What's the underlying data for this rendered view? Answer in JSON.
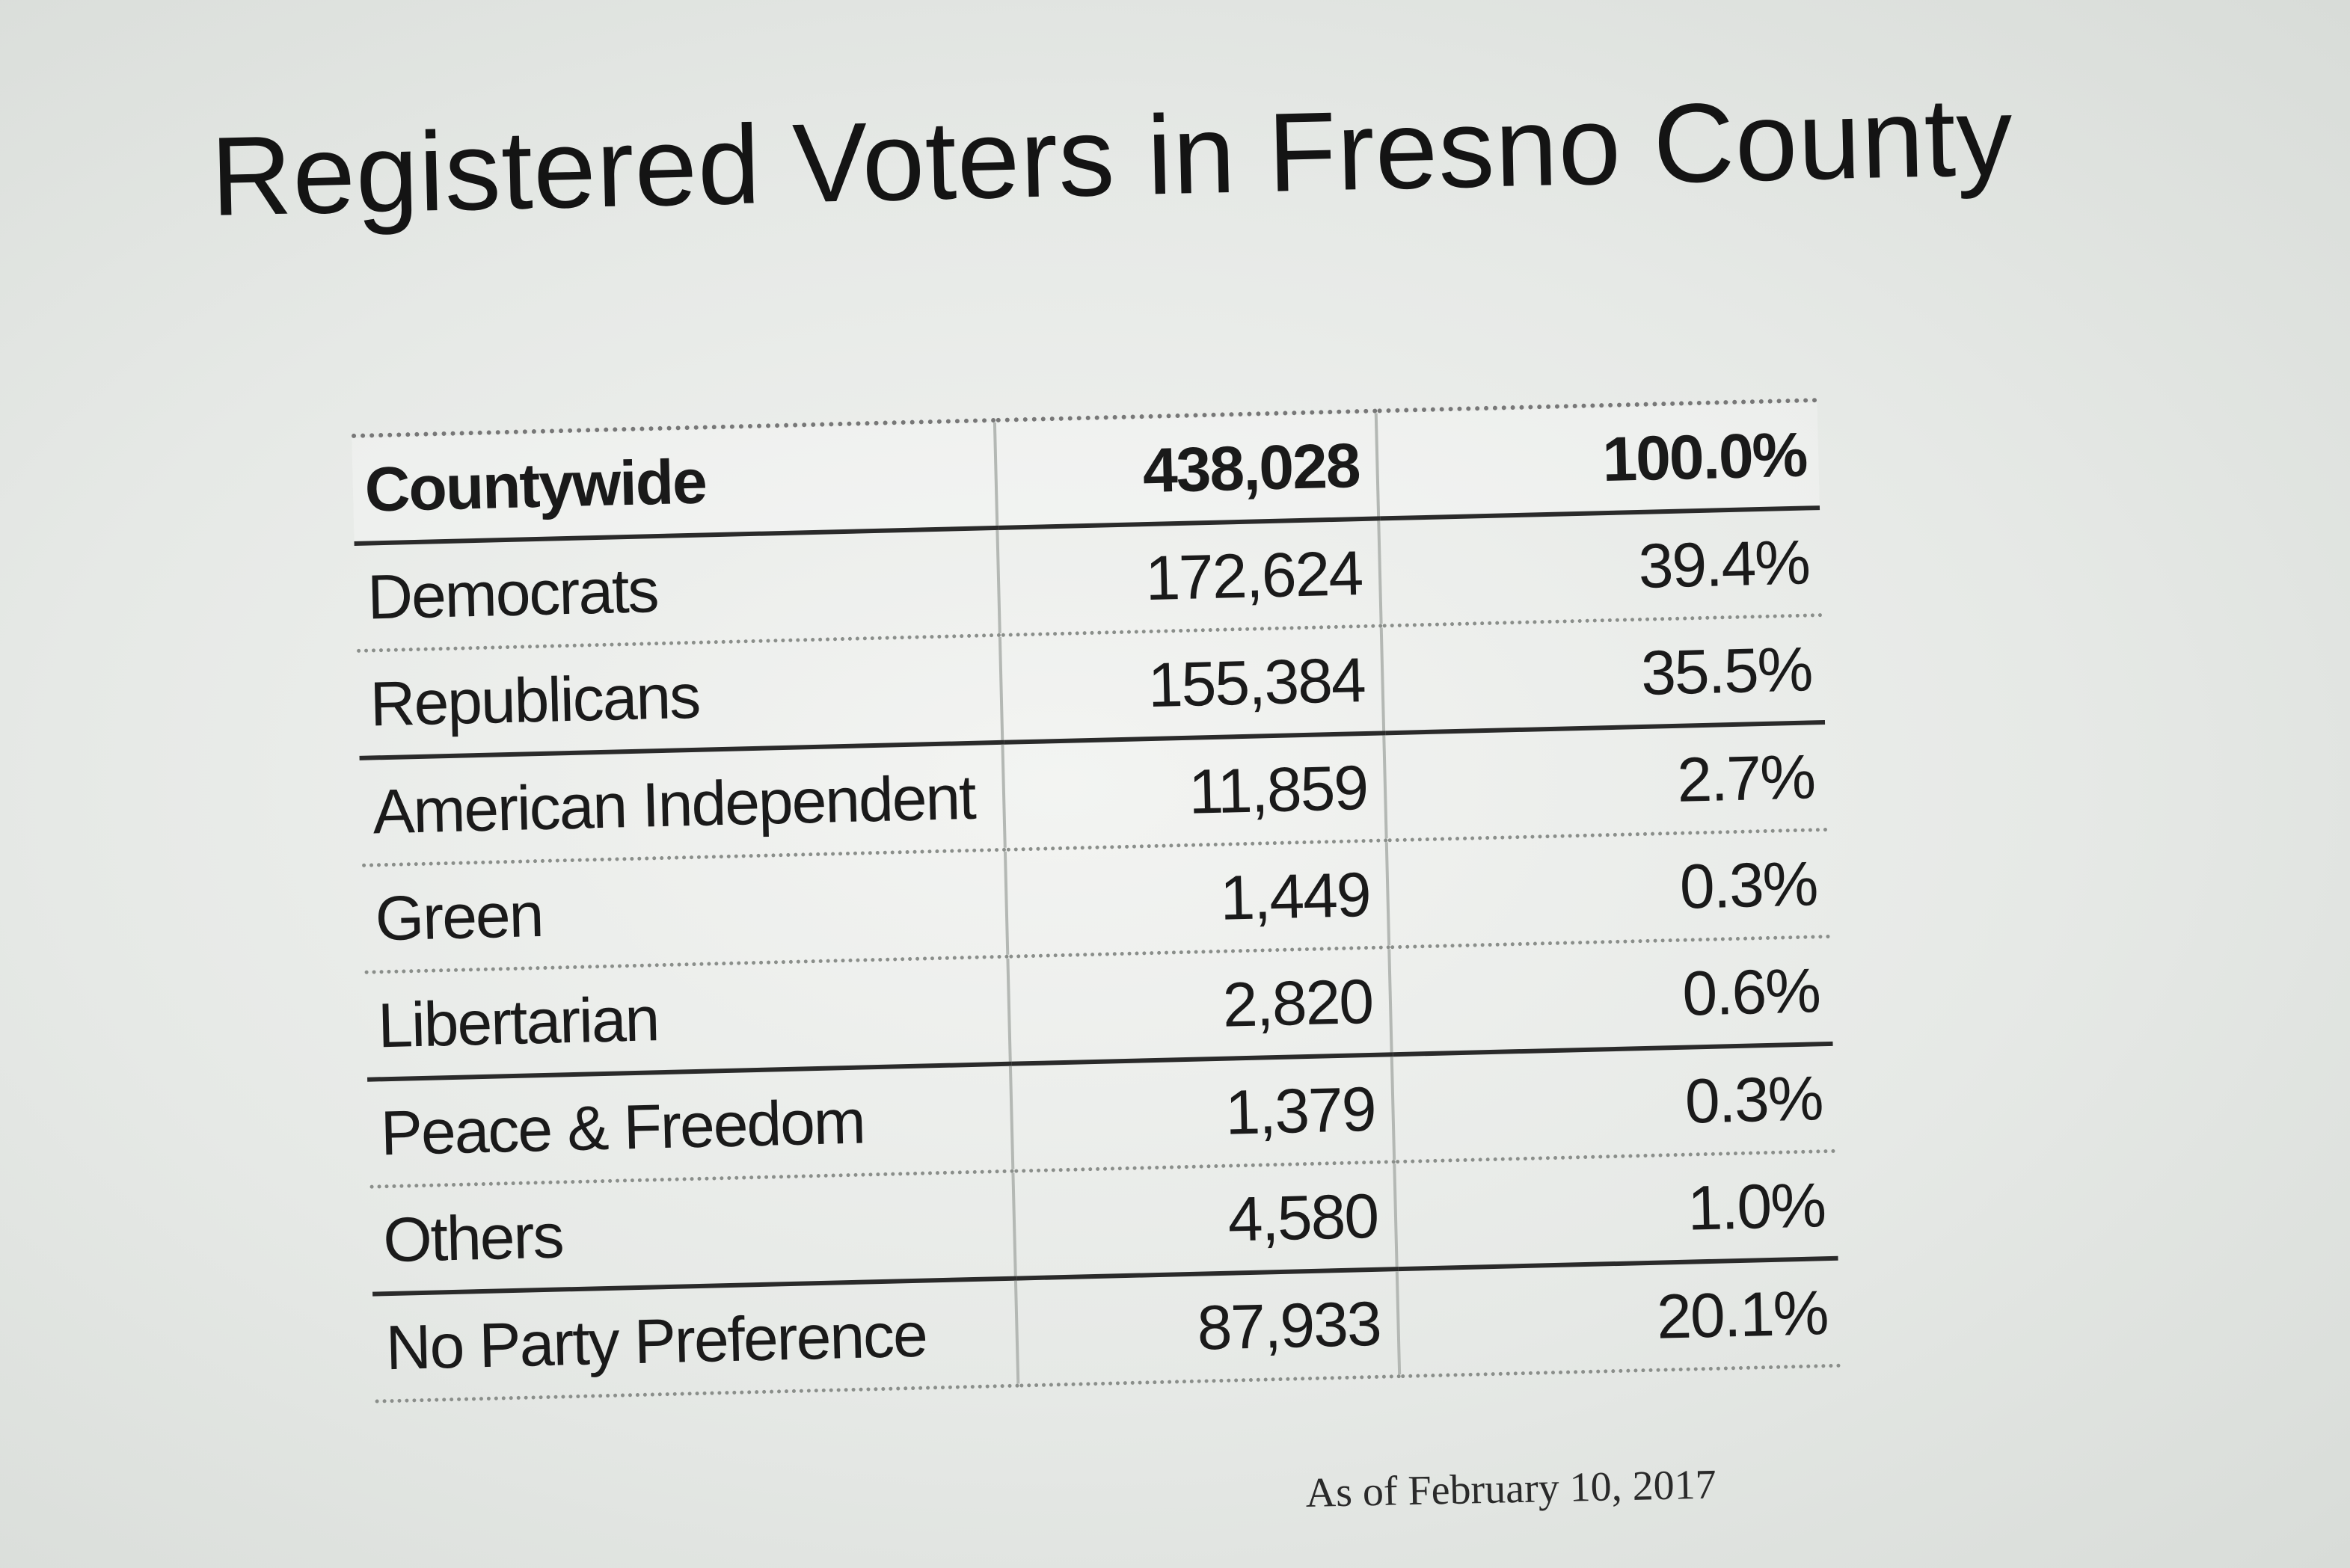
{
  "title": "Registered Voters in Fresno County",
  "note": "As of February 10, 2017",
  "chart_data": {
    "type": "table",
    "title": "Registered Voters in Fresno County",
    "header": {
      "party": "Countywide",
      "count": "438,028",
      "pct": "100.0%"
    },
    "rows": [
      {
        "party": "Democrats",
        "count": "172,624",
        "pct": "39.4%"
      },
      {
        "party": "Republicans",
        "count": "155,384",
        "pct": "35.5%"
      },
      {
        "party": "American Independent",
        "count": "11,859",
        "pct": "2.7%"
      },
      {
        "party": "Green",
        "count": "1,449",
        "pct": "0.3%"
      },
      {
        "party": "Libertarian",
        "count": "2,820",
        "pct": "0.6%"
      },
      {
        "party": "Peace & Freedom",
        "count": "1,379",
        "pct": "0.3%"
      },
      {
        "party": "Others",
        "count": "4,580",
        "pct": "1.0%"
      },
      {
        "party": "No Party Preference",
        "count": "87,933",
        "pct": "20.1%"
      }
    ]
  }
}
